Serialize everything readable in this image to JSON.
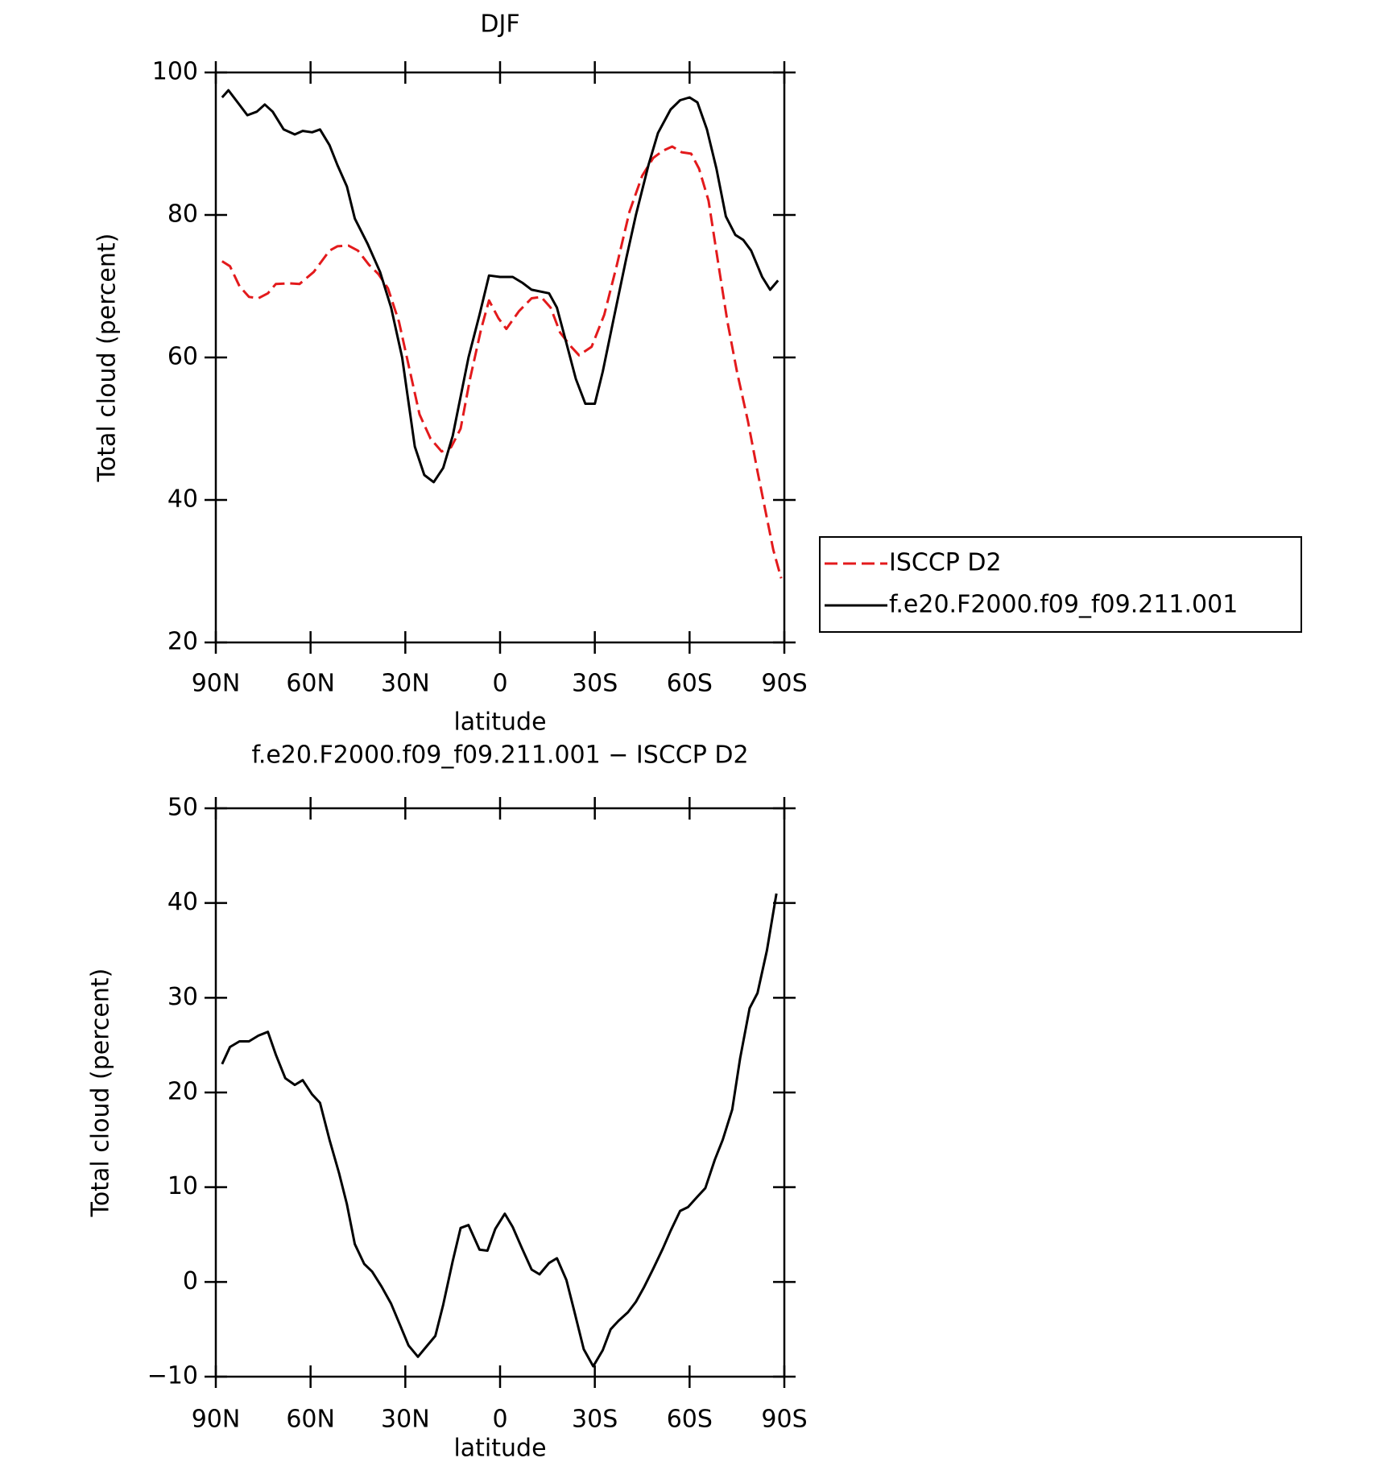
{
  "chart_data": [
    {
      "type": "line",
      "title": "DJF",
      "xlabel": "latitude",
      "ylabel": "Total cloud (percent)",
      "xlim": [
        90,
        -90
      ],
      "ylim": [
        20,
        100
      ],
      "xticks": [
        {
          "value": 90,
          "label": "90N"
        },
        {
          "value": 60,
          "label": "60N"
        },
        {
          "value": 30,
          "label": "30N"
        },
        0,
        {
          "value": -30,
          "label": "30S"
        },
        {
          "value": -60,
          "label": "60S"
        },
        {
          "value": -90,
          "label": "90S"
        }
      ],
      "yticks": [
        20,
        40,
        60,
        80,
        100
      ],
      "legend": "right",
      "series": [
        {
          "name": "ISCCP D2",
          "color": "#e31a1c",
          "dash": true,
          "x": [
            88,
            85.5,
            82.5,
            79.5,
            76.5,
            73.5,
            71,
            66.5,
            63.5,
            59,
            54,
            51.5,
            48,
            45,
            41.5,
            38.5,
            35.5,
            32,
            28.5,
            25.5,
            22,
            18.5,
            15.5,
            12.5,
            9.5,
            6,
            3.5,
            0.5,
            -2,
            -6,
            -10,
            -13,
            -16,
            -19,
            -22.5,
            -25,
            -29,
            -33,
            -37,
            -41,
            -45,
            -48.5,
            -51.5,
            -54.5,
            -57.5,
            -60.5,
            -63,
            -66,
            -69.5,
            -72,
            -75,
            -78.5,
            -81.5,
            -84,
            -86.5,
            -89
          ],
          "values": [
            73.5,
            72.8,
            70,
            68.5,
            68.3,
            69,
            70.3,
            70.4,
            70.3,
            72,
            75,
            75.6,
            75.7,
            75,
            73,
            71.7,
            69.7,
            65,
            58,
            52,
            48.6,
            46.8,
            47.4,
            50,
            57,
            64,
            68,
            65.5,
            64,
            66.5,
            68.3,
            68.5,
            67,
            63.5,
            61.5,
            60.3,
            61.5,
            66,
            73,
            80.5,
            85.5,
            88,
            89,
            89.6,
            88.8,
            88.6,
            86.5,
            82,
            72,
            65,
            58,
            51,
            44,
            38.5,
            33,
            29
          ]
        },
        {
          "name": "f.e20.F2000.f09_f09.211.001",
          "color": "#000000",
          "dash": false,
          "x": [
            88,
            86,
            80,
            77,
            74.5,
            72,
            68.5,
            65,
            62.5,
            59.5,
            57,
            54,
            51.5,
            48.5,
            46,
            42,
            38,
            34.5,
            31,
            27,
            24,
            21,
            18,
            15,
            10,
            6.5,
            3.5,
            0,
            -4,
            -7,
            -10,
            -15.5,
            -18,
            -21,
            -24,
            -27,
            -30,
            -32.5,
            -36,
            -40,
            -43,
            -47,
            -50,
            -54,
            -57,
            -60,
            -62.5,
            -65.5,
            -68.5,
            -71.5,
            -74.5,
            -77,
            -79.5,
            -83,
            -85.5,
            -88
          ],
          "values": [
            96.5,
            97.5,
            94,
            94.5,
            95.5,
            94.5,
            92,
            91.3,
            91.8,
            91.6,
            92,
            89.8,
            87,
            84,
            79.5,
            76,
            72,
            67,
            60,
            47.5,
            43.5,
            42.5,
            44.5,
            49,
            60,
            66,
            71.5,
            71.3,
            71.3,
            70.5,
            69.5,
            69,
            67,
            62,
            57,
            53.5,
            53.5,
            58,
            65.5,
            74,
            80,
            87,
            91.5,
            94.8,
            96.1,
            96.5,
            95.8,
            92,
            86.5,
            79.8,
            77.2,
            76.5,
            75,
            71.3,
            69.5,
            70.8
          ]
        }
      ]
    },
    {
      "type": "line",
      "title": "f.e20.F2000.f09_f09.211.001 − ISCCP D2",
      "xlabel": "latitude",
      "ylabel": "Total cloud (percent)",
      "xlim": [
        90,
        -90
      ],
      "ylim": [
        -10,
        50
      ],
      "xticks": [
        {
          "value": 90,
          "label": "90N"
        },
        {
          "value": 60,
          "label": "60N"
        },
        {
          "value": 30,
          "label": "30N"
        },
        0,
        {
          "value": -30,
          "label": "30S"
        },
        {
          "value": -60,
          "label": "60S"
        },
        {
          "value": -90,
          "label": "90S"
        }
      ],
      "yticks": [
        {
          "value": -10,
          "label": "−10"
        },
        0,
        10,
        20,
        30,
        40,
        50
      ],
      "color": "#000000",
      "x": [
        88,
        85.5,
        82.5,
        79.5,
        76.5,
        73.5,
        71,
        68,
        65,
        62.5,
        59.5,
        57,
        54,
        51,
        48.5,
        46,
        43,
        40.5,
        37.5,
        34.5,
        31.5,
        29,
        26,
        23.5,
        20.5,
        18,
        15,
        12.5,
        10,
        6.5,
        4,
        1.5,
        -1.5,
        -4,
        -7,
        -10,
        -12.5,
        -15.5,
        -18,
        -21,
        -23.5,
        -26.5,
        -29.5,
        -32.5,
        -35,
        -37.5,
        -40.5,
        -43,
        -45.5,
        -48.5,
        -51.5,
        -54,
        -57,
        -59.5,
        -62.5,
        -65,
        -68,
        -70.5,
        -73.5,
        -76,
        -79,
        -81.5,
        -84.5,
        -87.5
      ],
      "values": [
        23,
        24.8,
        25.4,
        25.4,
        26,
        26.4,
        24,
        21.5,
        20.8,
        21.3,
        19.8,
        18.9,
        15,
        11.5,
        8.2,
        4,
        1.9,
        1.1,
        -0.5,
        -2.3,
        -4.7,
        -6.7,
        -7.9,
        -6.9,
        -5.7,
        -2.4,
        2.2,
        5.7,
        6,
        3.4,
        3.3,
        5.6,
        7.2,
        5.8,
        3.5,
        1.3,
        0.8,
        2,
        2.5,
        0.2,
        -3.1,
        -7.1,
        -8.9,
        -7.2,
        -5,
        -4.1,
        -3.2,
        -2.1,
        -0.6,
        1.4,
        3.5,
        5.4,
        7.5,
        7.9,
        9,
        9.9,
        12.9,
        15,
        18.2,
        23.6,
        28.9,
        30.5,
        35,
        41
      ]
    }
  ]
}
